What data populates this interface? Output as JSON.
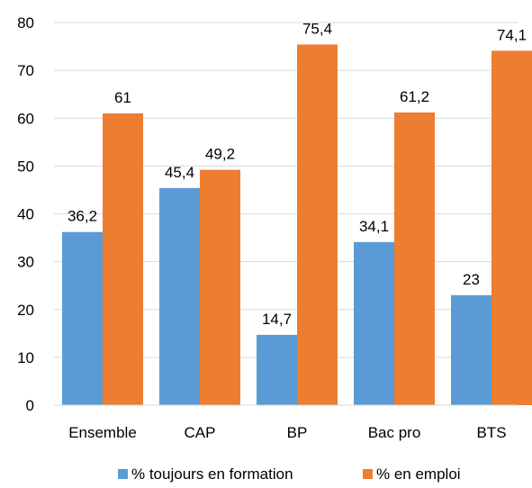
{
  "chart_data": {
    "type": "bar",
    "title": "",
    "xlabel": "",
    "ylabel": "",
    "categories": [
      "Ensemble",
      "CAP",
      "BP",
      "Bac pro",
      "BTS"
    ],
    "series": [
      {
        "name": "% toujours en formation",
        "color": "#5B9BD5",
        "values": [
          36.2,
          45.4,
          14.7,
          34.1,
          23
        ],
        "labels": [
          "36,2",
          "45,4",
          "14,7",
          "34,1",
          "23"
        ]
      },
      {
        "name": "% en emploi",
        "color": "#ED7D31",
        "values": [
          61,
          49.2,
          75.4,
          61.2,
          74.1
        ],
        "labels": [
          "61",
          "49,2",
          "75,4",
          "61,2",
          "74,1"
        ]
      }
    ],
    "ylim": [
      0,
      80
    ],
    "yticks": [
      0,
      10,
      20,
      30,
      40,
      50,
      60,
      70,
      80
    ],
    "grid": true,
    "gridColor": "#D9D9D9",
    "legendPosition": "bottom"
  }
}
